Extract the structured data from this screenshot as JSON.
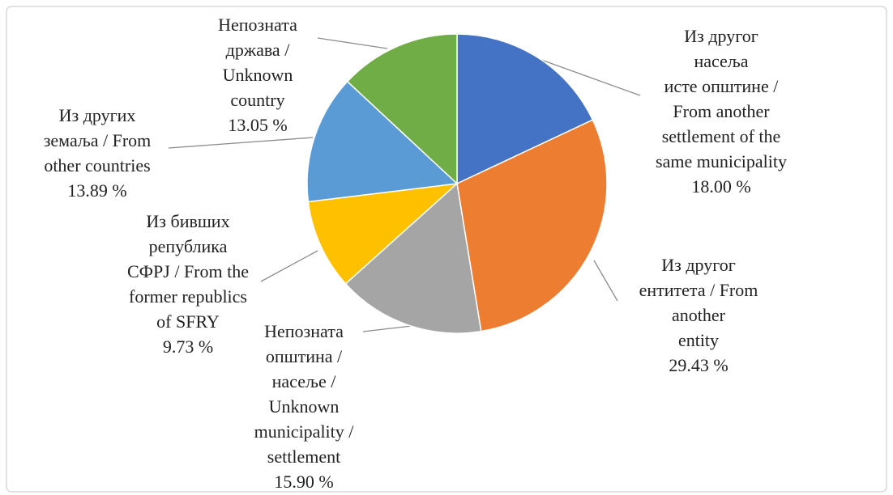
{
  "chart_data": {
    "type": "pie",
    "categories": [
      "Из другог\nнасеља\nисте општине /\nFrom another\nsettlement of the\nsame municipality",
      "Из другог\nентитета / From\nanother\nentity",
      "Непозната\nопштина /\nнасеље /\nUnknown\nmunicipality /\nsettlement",
      "Из бивших\nрепублика\nСФРЈ / From the\nformer republics\nof SFRY",
      "Из других\nземаља / From\nother countries",
      "Непозната\nдржава /\nUnknown\ncountry"
    ],
    "values": [
      18.0,
      29.43,
      15.9,
      9.73,
      13.89,
      13.05
    ],
    "value_labels": [
      "18.00 %",
      "29.43 %",
      "15.90 %",
      "9.73 %",
      "13.89 %",
      "13.05 %"
    ],
    "colors": [
      "#4472c4",
      "#ed7d31",
      "#a5a5a5",
      "#ffc000",
      "#5b9bd5",
      "#70ad47"
    ]
  }
}
